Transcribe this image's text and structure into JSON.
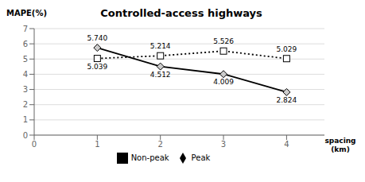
{
  "chart_data": {
    "type": "line",
    "title": "Controlled-access highways",
    "y_label": "MAPE(%)",
    "x_label": "spacing\n(km)",
    "x": [
      1,
      2,
      3,
      4
    ],
    "series": [
      {
        "name": "Peak",
        "color": "#000000",
        "marker": "diamond",
        "line_style": "solid",
        "values": [
          5.74,
          4.512,
          4.009,
          2.824
        ],
        "value_labels": [
          "5.740",
          "4.512",
          "4.009",
          "2.824"
        ]
      },
      {
        "name": "Non-peak",
        "color": "#000000",
        "marker": "square",
        "line_style": "dotted",
        "values": [
          5.039,
          5.214,
          5.526,
          5.029
        ],
        "value_labels": [
          "5.039",
          "5.214",
          "5.526",
          "5.029"
        ]
      }
    ],
    "xlim": [
      0,
      4.6
    ],
    "xticks": [
      0,
      1,
      2,
      3,
      4
    ],
    "ylim": [
      0,
      7
    ],
    "yticks": [
      0,
      1,
      2,
      3,
      4,
      5,
      6,
      7
    ],
    "grid": true,
    "legend": "bottom",
    "data_labels": true
  }
}
